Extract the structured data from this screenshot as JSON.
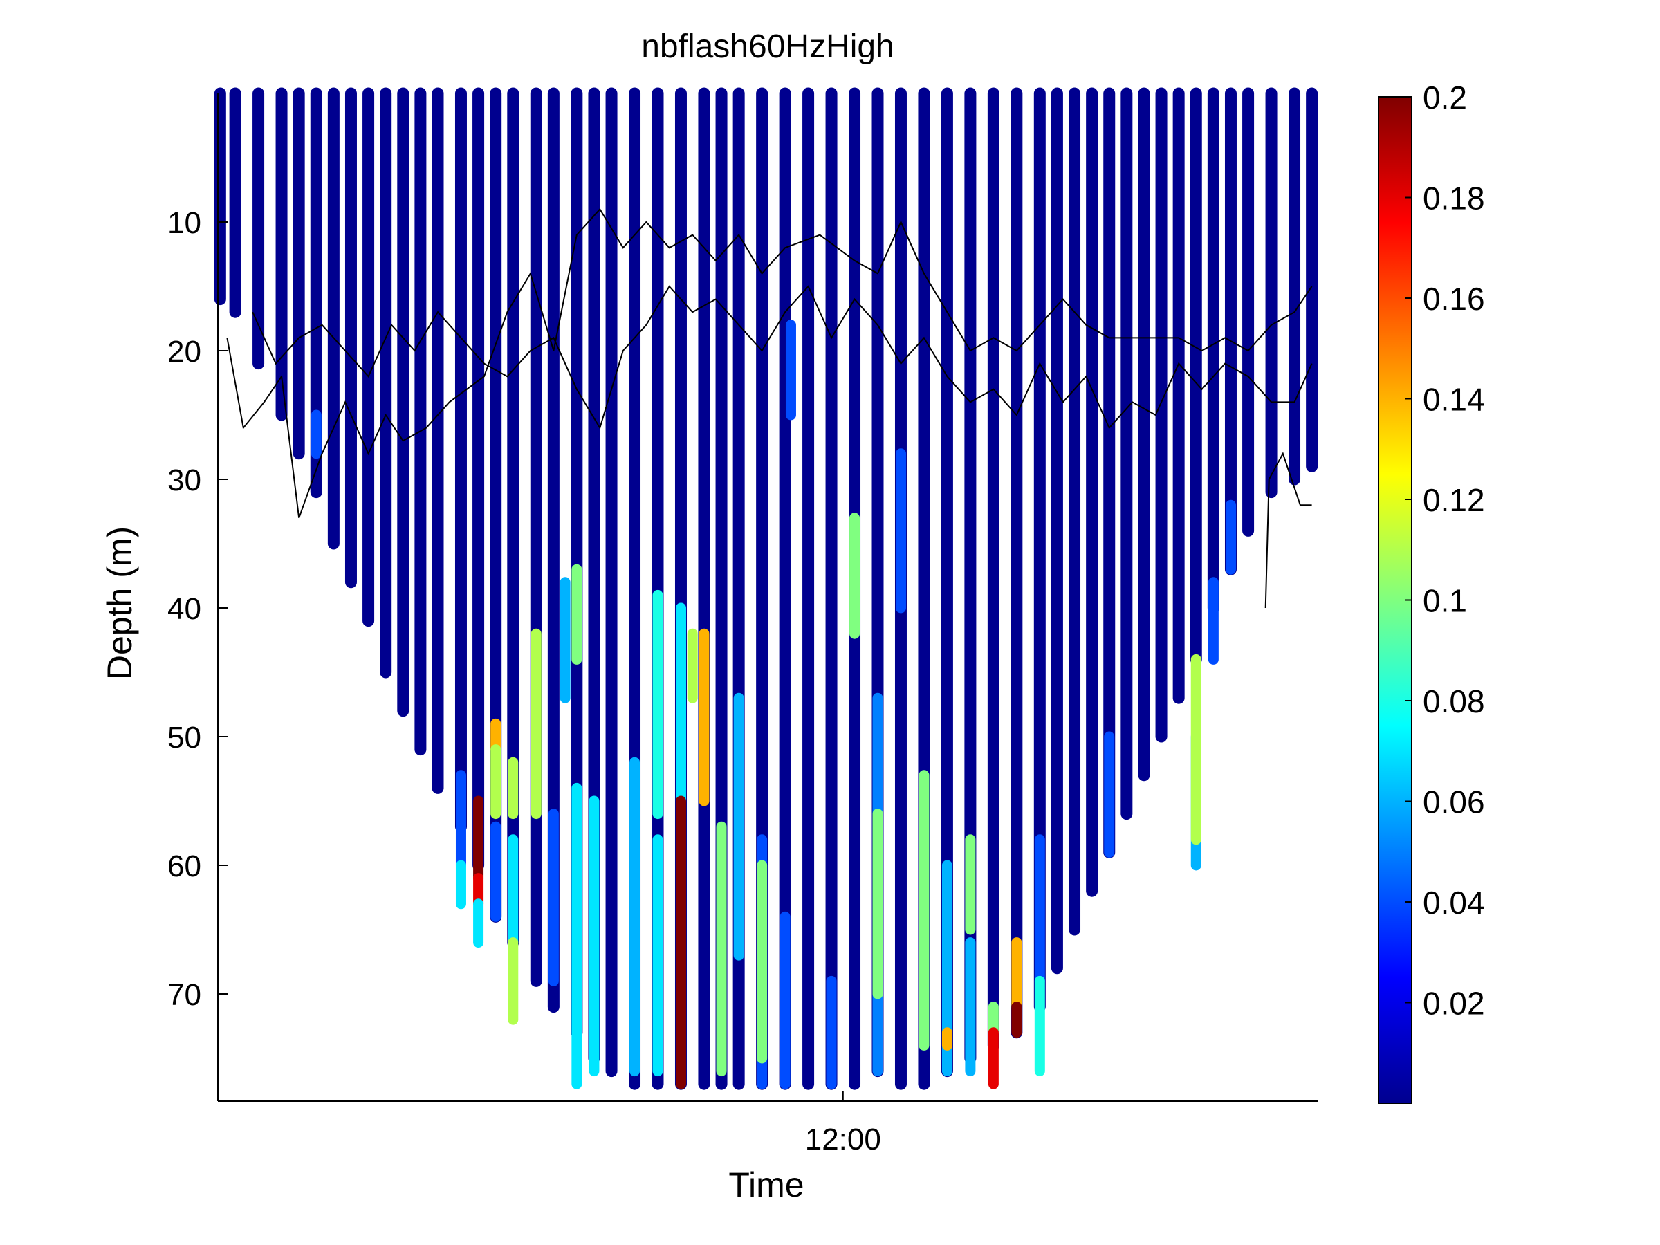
{
  "chart_data": {
    "type": "scatter",
    "title": "nbflash60HzHigh",
    "xlabel": "Time",
    "ylabel": "Depth (m)",
    "x_unit": "hours",
    "xlim": [
      6.6,
      16.1
    ],
    "x_ticks": [
      {
        "value": 12.0,
        "label": "12:00"
      }
    ],
    "ylim": [
      0,
      78
    ],
    "y_reversed": true,
    "y_ticks": [
      10,
      20,
      30,
      40,
      50,
      60,
      70
    ],
    "colorbar": {
      "colormap": "jet",
      "range": [
        0,
        0.2
      ],
      "ticks": [
        0.02,
        0.04,
        0.06,
        0.08,
        0.1,
        0.12,
        0.14,
        0.16,
        0.18,
        0.2
      ],
      "tick_labels": [
        "0.02",
        "0.04",
        "0.06",
        "0.08",
        "0.1",
        "0.12",
        "0.14",
        "0.16",
        "0.18",
        "0.2"
      ]
    },
    "profiles": [
      {
        "t": 6.62,
        "max_depth": 16
      },
      {
        "t": 6.75,
        "max_depth": 17
      },
      {
        "t": 6.95,
        "max_depth": 21
      },
      {
        "t": 7.15,
        "max_depth": 25
      },
      {
        "t": 7.3,
        "max_depth": 28
      },
      {
        "t": 7.45,
        "max_depth": 31
      },
      {
        "t": 7.6,
        "max_depth": 35
      },
      {
        "t": 7.75,
        "max_depth": 38
      },
      {
        "t": 7.9,
        "max_depth": 41
      },
      {
        "t": 8.05,
        "max_depth": 45
      },
      {
        "t": 8.2,
        "max_depth": 48
      },
      {
        "t": 8.35,
        "max_depth": 51
      },
      {
        "t": 8.5,
        "max_depth": 54
      },
      {
        "t": 8.7,
        "max_depth": 57
      },
      {
        "t": 8.85,
        "max_depth": 60
      },
      {
        "t": 9.0,
        "max_depth": 64
      },
      {
        "t": 9.15,
        "max_depth": 66
      },
      {
        "t": 9.35,
        "max_depth": 69
      },
      {
        "t": 9.5,
        "max_depth": 71
      },
      {
        "t": 9.7,
        "max_depth": 73
      },
      {
        "t": 9.85,
        "max_depth": 75
      },
      {
        "t": 10.0,
        "max_depth": 76
      },
      {
        "t": 10.2,
        "max_depth": 77
      },
      {
        "t": 10.4,
        "max_depth": 77
      },
      {
        "t": 10.6,
        "max_depth": 77
      },
      {
        "t": 10.8,
        "max_depth": 77
      },
      {
        "t": 10.95,
        "max_depth": 77
      },
      {
        "t": 11.1,
        "max_depth": 77
      },
      {
        "t": 11.3,
        "max_depth": 77
      },
      {
        "t": 11.5,
        "max_depth": 77
      },
      {
        "t": 11.7,
        "max_depth": 77
      },
      {
        "t": 11.9,
        "max_depth": 77
      },
      {
        "t": 12.1,
        "max_depth": 77
      },
      {
        "t": 12.3,
        "max_depth": 76
      },
      {
        "t": 12.5,
        "max_depth": 77
      },
      {
        "t": 12.7,
        "max_depth": 77
      },
      {
        "t": 12.9,
        "max_depth": 76
      },
      {
        "t": 13.1,
        "max_depth": 75
      },
      {
        "t": 13.3,
        "max_depth": 74
      },
      {
        "t": 13.5,
        "max_depth": 73
      },
      {
        "t": 13.7,
        "max_depth": 71
      },
      {
        "t": 13.85,
        "max_depth": 68
      },
      {
        "t": 14.0,
        "max_depth": 65
      },
      {
        "t": 14.15,
        "max_depth": 62
      },
      {
        "t": 14.3,
        "max_depth": 59
      },
      {
        "t": 14.45,
        "max_depth": 56
      },
      {
        "t": 14.6,
        "max_depth": 53
      },
      {
        "t": 14.75,
        "max_depth": 50
      },
      {
        "t": 14.9,
        "max_depth": 47
      },
      {
        "t": 15.05,
        "max_depth": 44
      },
      {
        "t": 15.2,
        "max_depth": 40
      },
      {
        "t": 15.35,
        "max_depth": 37
      },
      {
        "t": 15.5,
        "max_depth": 34
      },
      {
        "t": 15.7,
        "max_depth": 31
      },
      {
        "t": 15.9,
        "max_depth": 30
      },
      {
        "t": 16.05,
        "max_depth": 29
      }
    ],
    "high_value_segments": [
      {
        "t": 8.85,
        "from": 55,
        "to": 61,
        "value": 0.2
      },
      {
        "t": 8.85,
        "from": 61,
        "to": 63,
        "value": 0.18
      },
      {
        "t": 8.85,
        "from": 63,
        "to": 66,
        "value": 0.07
      },
      {
        "t": 9.0,
        "from": 49,
        "to": 51,
        "value": 0.14
      },
      {
        "t": 9.0,
        "from": 51,
        "to": 56,
        "value": 0.11
      },
      {
        "t": 9.15,
        "from": 52,
        "to": 56,
        "value": 0.11
      },
      {
        "t": 9.15,
        "from": 66,
        "to": 72,
        "value": 0.11
      },
      {
        "t": 9.35,
        "from": 42,
        "to": 56,
        "value": 0.11
      },
      {
        "t": 9.7,
        "from": 37,
        "to": 44,
        "value": 0.1
      },
      {
        "t": 9.7,
        "from": 54,
        "to": 77,
        "value": 0.07
      },
      {
        "t": 10.4,
        "from": 39,
        "to": 56,
        "value": 0.08
      },
      {
        "t": 10.6,
        "from": 55,
        "to": 77,
        "value": 0.2
      },
      {
        "t": 10.7,
        "from": 42,
        "to": 47,
        "value": 0.11
      },
      {
        "t": 10.8,
        "from": 42,
        "to": 55,
        "value": 0.14
      },
      {
        "t": 10.95,
        "from": 57,
        "to": 76,
        "value": 0.1
      },
      {
        "t": 11.3,
        "from": 60,
        "to": 75,
        "value": 0.1
      },
      {
        "t": 12.1,
        "from": 33,
        "to": 42,
        "value": 0.1
      },
      {
        "t": 12.3,
        "from": 56,
        "to": 70,
        "value": 0.1
      },
      {
        "t": 12.7,
        "from": 53,
        "to": 74,
        "value": 0.1
      },
      {
        "t": 12.9,
        "from": 73,
        "to": 74,
        "value": 0.14
      },
      {
        "t": 13.1,
        "from": 58,
        "to": 65,
        "value": 0.1
      },
      {
        "t": 13.3,
        "from": 71,
        "to": 73,
        "value": 0.1
      },
      {
        "t": 13.3,
        "from": 73,
        "to": 77,
        "value": 0.18
      },
      {
        "t": 13.5,
        "from": 66,
        "to": 71,
        "value": 0.14
      },
      {
        "t": 13.5,
        "from": 71,
        "to": 73,
        "value": 0.2
      },
      {
        "t": 13.7,
        "from": 69,
        "to": 76,
        "value": 0.08
      },
      {
        "t": 15.05,
        "from": 44,
        "to": 58,
        "value": 0.11
      }
    ],
    "mid_value_segments": [
      {
        "t": 7.45,
        "from": 25,
        "to": 28,
        "value": 0.04
      },
      {
        "t": 8.7,
        "from": 53,
        "to": 60,
        "value": 0.04
      },
      {
        "t": 8.7,
        "from": 60,
        "to": 63,
        "value": 0.07
      },
      {
        "t": 9.0,
        "from": 57,
        "to": 64,
        "value": 0.04
      },
      {
        "t": 9.15,
        "from": 58,
        "to": 66,
        "value": 0.07
      },
      {
        "t": 9.5,
        "from": 56,
        "to": 69,
        "value": 0.04
      },
      {
        "t": 9.6,
        "from": 38,
        "to": 47,
        "value": 0.06
      },
      {
        "t": 9.85,
        "from": 55,
        "to": 76,
        "value": 0.07
      },
      {
        "t": 10.2,
        "from": 52,
        "to": 76,
        "value": 0.06
      },
      {
        "t": 10.4,
        "from": 58,
        "to": 76,
        "value": 0.07
      },
      {
        "t": 10.6,
        "from": 40,
        "to": 52,
        "value": 0.04
      },
      {
        "t": 10.6,
        "from": 40,
        "to": 55,
        "value": 0.07
      },
      {
        "t": 11.1,
        "from": 47,
        "to": 67,
        "value": 0.06
      },
      {
        "t": 11.3,
        "from": 58,
        "to": 77,
        "value": 0.04
      },
      {
        "t": 11.5,
        "from": 64,
        "to": 77,
        "value": 0.04
      },
      {
        "t": 11.9,
        "from": 69,
        "to": 77,
        "value": 0.04
      },
      {
        "t": 11.55,
        "from": 18,
        "to": 25,
        "value": 0.04
      },
      {
        "t": 12.3,
        "from": 47,
        "to": 76,
        "value": 0.05
      },
      {
        "t": 12.5,
        "from": 28,
        "to": 40,
        "value": 0.04
      },
      {
        "t": 12.9,
        "from": 60,
        "to": 76,
        "value": 0.06
      },
      {
        "t": 13.1,
        "from": 66,
        "to": 76,
        "value": 0.06
      },
      {
        "t": 13.7,
        "from": 58,
        "to": 69,
        "value": 0.04
      },
      {
        "t": 14.3,
        "from": 50,
        "to": 59,
        "value": 0.04
      },
      {
        "t": 15.2,
        "from": 38,
        "to": 44,
        "value": 0.04
      },
      {
        "t": 15.05,
        "from": 50,
        "to": 60,
        "value": 0.06
      },
      {
        "t": 15.35,
        "from": 32,
        "to": 37,
        "value": 0.04
      }
    ],
    "contour_lines": [
      {
        "points": [
          [
            6.68,
            19
          ],
          [
            6.82,
            26
          ],
          [
            7.0,
            24
          ],
          [
            7.15,
            22
          ],
          [
            7.3,
            33
          ],
          [
            7.5,
            28
          ],
          [
            7.7,
            24
          ],
          [
            7.9,
            28
          ],
          [
            8.05,
            25
          ],
          [
            8.2,
            27
          ],
          [
            8.4,
            26
          ],
          [
            8.6,
            24
          ],
          [
            8.9,
            22
          ],
          [
            9.1,
            17
          ],
          [
            9.3,
            14
          ],
          [
            9.5,
            20
          ],
          [
            9.7,
            11
          ],
          [
            9.9,
            9
          ],
          [
            10.1,
            12
          ],
          [
            10.3,
            10
          ],
          [
            10.5,
            12
          ],
          [
            10.7,
            11
          ],
          [
            10.9,
            13
          ],
          [
            11.1,
            11
          ],
          [
            11.3,
            14
          ],
          [
            11.5,
            12
          ],
          [
            11.8,
            11
          ],
          [
            12.1,
            13
          ],
          [
            12.3,
            14
          ],
          [
            12.5,
            10
          ],
          [
            12.7,
            14
          ],
          [
            12.9,
            17
          ],
          [
            13.1,
            20
          ],
          [
            13.3,
            19
          ],
          [
            13.5,
            20
          ],
          [
            13.7,
            18
          ],
          [
            13.9,
            16
          ],
          [
            14.1,
            18
          ],
          [
            14.3,
            19
          ],
          [
            14.6,
            19
          ],
          [
            14.9,
            19
          ],
          [
            15.1,
            20
          ],
          [
            15.3,
            19
          ],
          [
            15.5,
            20
          ],
          [
            15.7,
            18
          ],
          [
            15.9,
            17
          ],
          [
            16.05,
            15
          ]
        ]
      },
      {
        "points": [
          [
            6.9,
            17
          ],
          [
            7.1,
            21
          ],
          [
            7.3,
            19
          ],
          [
            7.5,
            18
          ],
          [
            7.7,
            20
          ],
          [
            7.9,
            22
          ],
          [
            8.1,
            18
          ],
          [
            8.3,
            20
          ],
          [
            8.5,
            17
          ],
          [
            8.7,
            19
          ],
          [
            8.9,
            21
          ],
          [
            9.1,
            22
          ],
          [
            9.3,
            20
          ],
          [
            9.5,
            19
          ],
          [
            9.7,
            23
          ],
          [
            9.9,
            26
          ],
          [
            10.1,
            20
          ],
          [
            10.3,
            18
          ],
          [
            10.5,
            15
          ],
          [
            10.7,
            17
          ],
          [
            10.9,
            16
          ],
          [
            11.1,
            18
          ],
          [
            11.3,
            20
          ],
          [
            11.5,
            17
          ],
          [
            11.7,
            15
          ],
          [
            11.9,
            19
          ],
          [
            12.1,
            16
          ],
          [
            12.3,
            18
          ],
          [
            12.5,
            21
          ],
          [
            12.7,
            19
          ],
          [
            12.9,
            22
          ],
          [
            13.1,
            24
          ],
          [
            13.3,
            23
          ],
          [
            13.5,
            25
          ],
          [
            13.7,
            21
          ],
          [
            13.9,
            24
          ],
          [
            14.1,
            22
          ],
          [
            14.3,
            26
          ],
          [
            14.5,
            24
          ],
          [
            14.7,
            25
          ],
          [
            14.9,
            21
          ],
          [
            15.1,
            23
          ],
          [
            15.3,
            21
          ],
          [
            15.5,
            22
          ],
          [
            15.7,
            24
          ],
          [
            15.9,
            24
          ],
          [
            16.05,
            21
          ]
        ]
      },
      {
        "points": [
          [
            15.65,
            40
          ],
          [
            15.68,
            30
          ],
          [
            15.8,
            28
          ],
          [
            15.95,
            32
          ],
          [
            16.05,
            32
          ]
        ]
      }
    ]
  }
}
